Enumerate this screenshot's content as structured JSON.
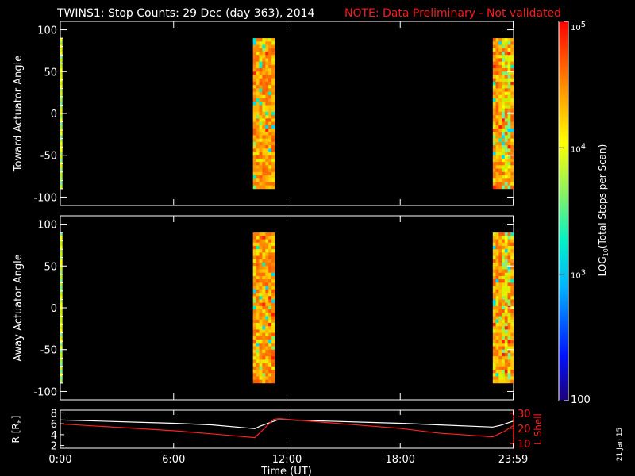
{
  "title": {
    "main": "TWINS1: Stop Counts: 29 Dec (day 363), 2014",
    "note": "NOTE: Data Preliminary - Not validated",
    "note_color": "#ff1a1a"
  },
  "timestamp": "21 Jan 15",
  "colorbar": {
    "label": "LOG10(Total Stops per Scan)",
    "label_parts": [
      "LOG",
      "10",
      "(Total Stops per Scan)"
    ],
    "ticks": [
      {
        "base": "10",
        "exp": "5",
        "value": 100000
      },
      {
        "base": "10",
        "exp": "4",
        "value": 10000
      },
      {
        "base": "10",
        "exp": "3",
        "value": 1000
      },
      {
        "base": "100",
        "exp": "",
        "value": 100
      }
    ],
    "range": [
      100,
      100000
    ],
    "scale": "log"
  },
  "chart_data": [
    {
      "type": "heatmap",
      "ylabel": "Toward Actuator Angle",
      "ylim": [
        -110,
        110
      ],
      "yticks": [
        "100",
        "50",
        "0",
        "-50",
        "-100"
      ],
      "ytick_values": [
        100,
        50,
        0,
        -50,
        -100
      ],
      "xlim_hours": [
        0,
        24
      ],
      "angle_range": [
        -90,
        90
      ],
      "blocks": [
        {
          "start_hour": 0.0,
          "end_hour": 0.1,
          "level": "mid"
        },
        {
          "start_hour": 10.2,
          "end_hour": 11.35,
          "level": "high"
        },
        {
          "start_hour": 22.9,
          "end_hour": 24.0,
          "level": "high"
        }
      ]
    },
    {
      "type": "heatmap",
      "ylabel": "Away Actuator Angle",
      "ylim": [
        -110,
        110
      ],
      "yticks": [
        "100",
        "50",
        "0",
        "-50",
        "-100"
      ],
      "ytick_values": [
        100,
        50,
        0,
        -50,
        -100
      ],
      "xlim_hours": [
        0,
        24
      ],
      "angle_range": [
        -90,
        90
      ],
      "blocks": [
        {
          "start_hour": 0.0,
          "end_hour": 0.1,
          "level": "mid"
        },
        {
          "start_hour": 10.2,
          "end_hour": 11.35,
          "level": "high"
        },
        {
          "start_hour": 22.9,
          "end_hour": 24.0,
          "level": "high"
        }
      ]
    },
    {
      "type": "line",
      "xlabel": "Time (UT)",
      "xticks": [
        "0:00",
        "6:00",
        "12:00",
        "18:00",
        "23:59"
      ],
      "xtick_hours": [
        0,
        6,
        12,
        18,
        23.98
      ],
      "xlim_hours": [
        0,
        24
      ],
      "left_axis": {
        "label": "R [RE]",
        "label_main": "R [R",
        "label_sub": "E",
        "label_end": "]",
        "ticks": [
          "8",
          "6",
          "4",
          "2"
        ],
        "tick_values": [
          8,
          6,
          4,
          2
        ],
        "ylim": [
          1.5,
          8.5
        ]
      },
      "right_axis": {
        "label": "L Shell",
        "ticks": [
          "30",
          "20",
          "10"
        ],
        "tick_values": [
          30,
          20,
          10
        ],
        "ylim": [
          7,
          32
        ],
        "color": "#ff2020"
      },
      "series": [
        {
          "axis": "left",
          "color": "#ffffff",
          "x": [
            0,
            2,
            4,
            6,
            8,
            10.3,
            10.6,
            11.5,
            12,
            14,
            16,
            18,
            20,
            22.9,
            23.3,
            24
          ],
          "y": [
            6.7,
            6.5,
            6.3,
            6.1,
            5.8,
            5.1,
            5.6,
            6.7,
            6.7,
            6.5,
            6.3,
            6.1,
            5.8,
            5.4,
            5.7,
            6.5
          ]
        },
        {
          "axis": "right",
          "color": "#ff2020",
          "x": [
            0,
            2,
            4,
            6,
            8,
            10.3,
            11.3,
            11.6,
            12,
            14,
            16,
            18,
            20,
            22.9,
            23.5,
            24
          ],
          "y": [
            23,
            21.5,
            20,
            18.5,
            16.5,
            14,
            26,
            26.5,
            26,
            24,
            22,
            20,
            17,
            14.5,
            18,
            22
          ]
        }
      ]
    }
  ]
}
